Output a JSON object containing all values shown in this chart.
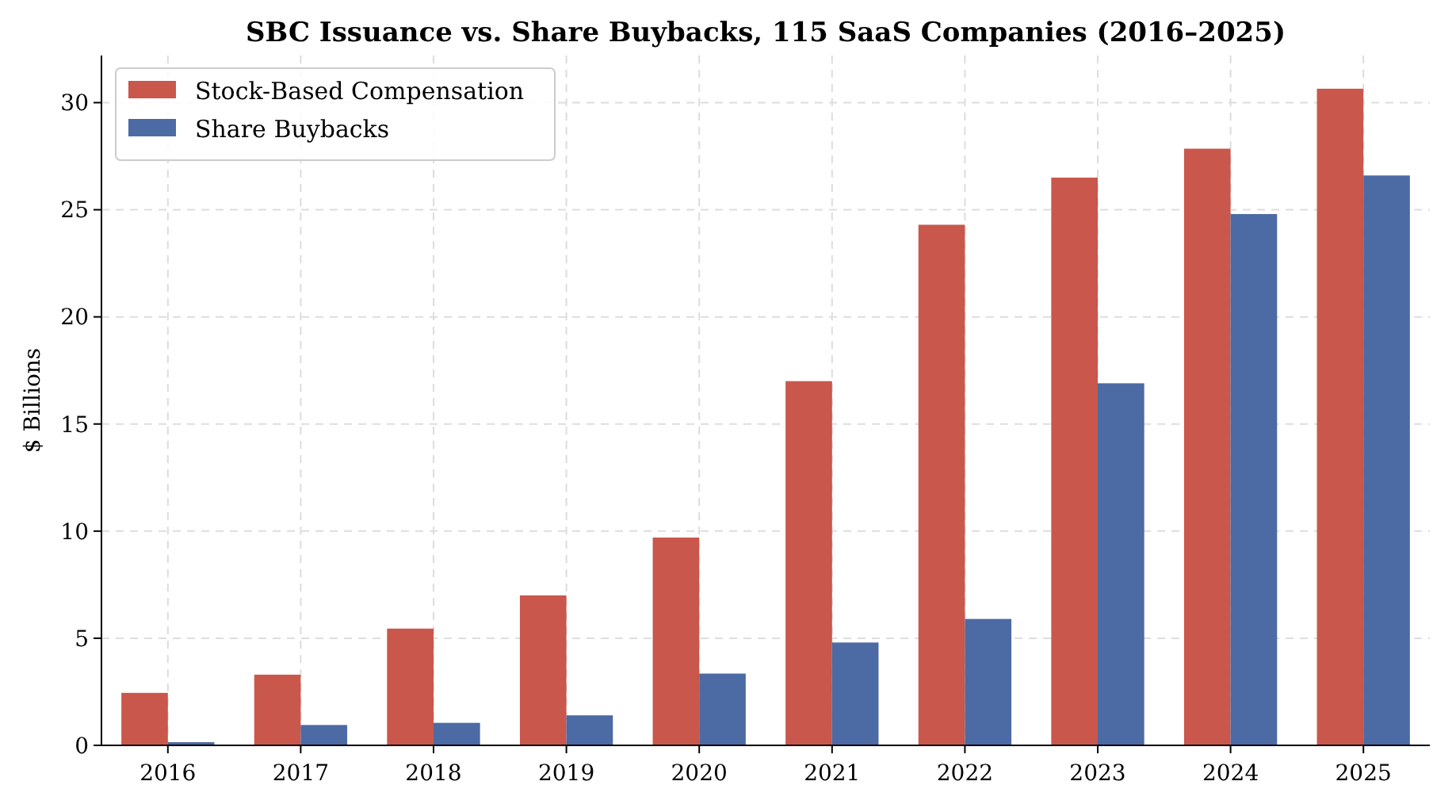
{
  "chart_data": {
    "type": "bar",
    "title": "SBC Issuance vs. Share Buybacks, 115 SaaS Companies (2016–2025)",
    "ylabel": "$ Billions",
    "categories": [
      "2016",
      "2017",
      "2018",
      "2019",
      "2020",
      "2021",
      "2022",
      "2023",
      "2024",
      "2025"
    ],
    "series": [
      {
        "name": "Stock-Based Compensation",
        "color": "#c9574c",
        "values": [
          2.45,
          3.3,
          5.45,
          7.0,
          9.7,
          17.0,
          24.3,
          26.5,
          27.85,
          30.65
        ]
      },
      {
        "name": "Share Buybacks",
        "color": "#4c6aa3",
        "values": [
          0.15,
          0.95,
          1.05,
          1.4,
          3.35,
          4.8,
          5.9,
          16.9,
          24.8,
          26.6
        ]
      }
    ],
    "ylim": [
      0,
      32.2
    ],
    "yticks": [
      0,
      5,
      10,
      15,
      20,
      25,
      30
    ],
    "grid": true,
    "legend": "top left"
  }
}
